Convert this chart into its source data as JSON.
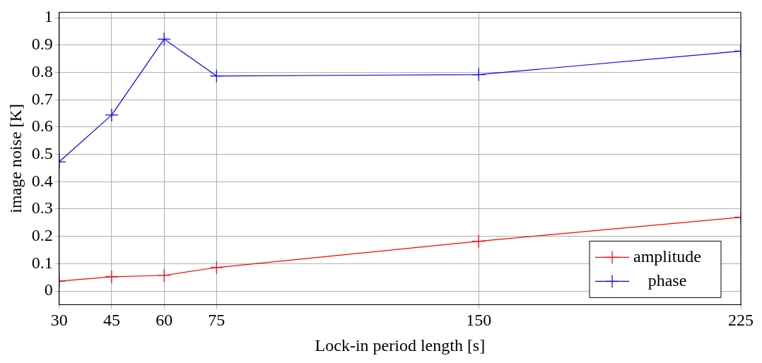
{
  "chart_data": {
    "type": "line",
    "xlabel": "Lock-in period length [s]",
    "ylabel": "image noise [K]",
    "x": [
      30,
      45,
      60,
      75,
      150,
      225
    ],
    "series": [
      {
        "name": "amplitude",
        "color": "#ff0000",
        "values": [
          0.036,
          0.052,
          0.057,
          0.086,
          0.182,
          0.27
        ]
      },
      {
        "name": "phase",
        "color": "#0000ff",
        "values": [
          0.473,
          0.644,
          0.922,
          0.787,
          0.792,
          0.878
        ]
      }
    ],
    "xlim": [
      30,
      225
    ],
    "xticks": [
      30,
      45,
      60,
      75,
      150,
      225
    ],
    "ylim": [
      -0.05,
      1.02
    ],
    "yticks": [
      0,
      0.1,
      0.2,
      0.3,
      0.4,
      0.5,
      0.6,
      0.7,
      0.8,
      0.9,
      1
    ],
    "grid": true,
    "legend": "bottom right",
    "marker": "cross",
    "line_style": "solid"
  }
}
